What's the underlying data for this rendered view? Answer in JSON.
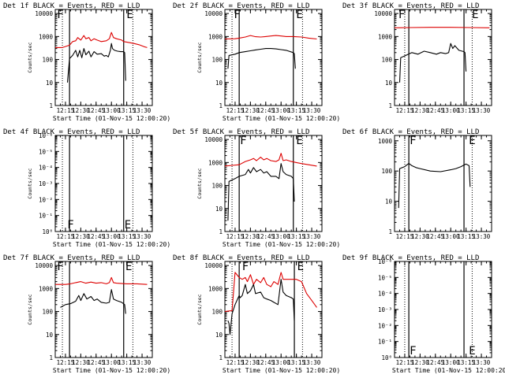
{
  "figure": {
    "series_names": [
      "BLACK = Events",
      "RED = LLD"
    ],
    "colors": {
      "events": "#000000",
      "lld": "#dd0000",
      "axis": "#000000"
    }
  },
  "chart_data": [
    {
      "type": "line",
      "title": "Det 1f BLACK = Events, RED = LLD",
      "xlabel": "Start Time (01-Nov-15 12:00:20)",
      "ylabel": "Counts/sec",
      "yscale": "log",
      "ylim": [
        1,
        15000
      ],
      "ytick_labels": [
        "1",
        "10",
        "100",
        "1000",
        "10000"
      ],
      "xlim": [
        "12:05",
        "13:40"
      ],
      "xtick_labels": [
        "12:15",
        "12:30",
        "12:45",
        "13:00",
        "13:15",
        "13:30"
      ],
      "dotted_lines": [
        "12:12",
        "13:21"
      ],
      "solid_lines": [
        "12:19",
        "13:12"
      ],
      "markers": [
        {
          "text": "F",
          "at": "12:06"
        },
        {
          "text": "E",
          "at": "13:14"
        }
      ],
      "series": [
        {
          "name": "RED = LLD",
          "color": "#dd0000",
          "x": [
            "12:05",
            "12:12",
            "12:19",
            "12:22",
            "12:25",
            "12:27",
            "12:30",
            "12:33",
            "12:35",
            "12:38",
            "12:40",
            "12:43",
            "12:46",
            "12:50",
            "12:55",
            "12:58",
            "13:00",
            "13:02",
            "13:05",
            "13:10",
            "13:12",
            "13:17",
            "13:22",
            "13:27",
            "13:32",
            "13:35"
          ],
          "y": [
            330,
            330,
            420,
            600,
            650,
            900,
            700,
            1100,
            800,
            900,
            650,
            800,
            700,
            600,
            650,
            800,
            1500,
            900,
            800,
            700,
            600,
            550,
            500,
            440,
            360,
            330
          ]
        },
        {
          "name": "BLACK = Events",
          "color": "#000000",
          "x": [
            "12:17",
            "12:19",
            "12:22",
            "12:25",
            "12:27",
            "12:29",
            "12:31",
            "12:33",
            "12:35",
            "12:38",
            "12:40",
            "12:43",
            "12:46",
            "12:50",
            "12:53",
            "12:55",
            "12:57",
            "12:59",
            "13:00",
            "13:01",
            "13:03",
            "13:06",
            "13:09",
            "13:12",
            "13:13",
            "13:14"
          ],
          "y": [
            10,
            110,
            150,
            250,
            130,
            250,
            120,
            300,
            160,
            230,
            130,
            220,
            170,
            180,
            140,
            150,
            130,
            250,
            500,
            300,
            250,
            230,
            220,
            220,
            200,
            12
          ]
        }
      ]
    },
    {
      "type": "line",
      "title": "Det 2f BLACK = Events, RED = LLD",
      "xlabel": "Start Time (01-Nov-15 12:00:20)",
      "ylabel": "Counts/sec",
      "yscale": "log",
      "ylim": [
        1,
        15000
      ],
      "ytick_labels": [
        "1",
        "10",
        "100",
        "1000",
        "10000"
      ],
      "xlim": [
        "12:05",
        "13:40"
      ],
      "xtick_labels": [
        "12:15",
        "12:30",
        "12:45",
        "13:00",
        "13:15",
        "13:30"
      ],
      "dotted_lines": [
        "12:12",
        "13:21"
      ],
      "solid_lines": [
        "12:19",
        "13:12"
      ],
      "markers": [
        {
          "text": "F",
          "at": "12:13"
        },
        {
          "text": "E",
          "at": "13:14"
        }
      ],
      "series": [
        {
          "name": "RED = LLD",
          "color": "#dd0000",
          "x": [
            "12:05",
            "12:15",
            "12:19",
            "12:25",
            "12:30",
            "12:35",
            "12:40",
            "12:45",
            "12:50",
            "12:55",
            "13:00",
            "13:05",
            "13:12",
            "13:20",
            "13:27",
            "13:35"
          ],
          "y": [
            780,
            800,
            850,
            950,
            1100,
            980,
            950,
            1000,
            1050,
            1100,
            1050,
            1000,
            1000,
            950,
            850,
            780
          ]
        },
        {
          "name": "BLACK = Events",
          "color": "#000000",
          "x": [
            "12:08",
            "12:09",
            "12:15",
            "12:19",
            "12:25",
            "12:30",
            "12:35",
            "12:40",
            "12:45",
            "12:50",
            "12:55",
            "13:00",
            "13:05",
            "13:12",
            "13:13",
            "13:14"
          ],
          "y": [
            40,
            150,
            170,
            200,
            220,
            240,
            260,
            280,
            300,
            300,
            290,
            270,
            250,
            200,
            180,
            40
          ]
        }
      ]
    },
    {
      "type": "line",
      "title": "Det 3f BLACK = Events, RED = LLD",
      "xlabel": "",
      "ylabel": "",
      "yscale": "log",
      "ylim": [
        1,
        15000
      ],
      "ytick_labels": [
        "1",
        "10",
        "100",
        "1000",
        "10000"
      ],
      "xlim": [
        "12:05",
        "13:40"
      ],
      "xtick_labels": [
        "12:15",
        "12:30",
        "12:45",
        "13:00",
        "13:15",
        "13:30"
      ],
      "dotted_lines": [
        "12:15",
        "13:21"
      ],
      "solid_lines": [
        "12:19",
        "13:13"
      ],
      "markers": [
        {
          "text": "F",
          "at": "12:08"
        },
        {
          "text": "E",
          "at": "13:20"
        }
      ],
      "series": [
        {
          "name": "RED = LLD",
          "color": "#dd0000",
          "x": [
            "12:05",
            "12:20",
            "12:40",
            "13:00",
            "13:20",
            "13:38"
          ],
          "y": [
            2400,
            2450,
            2500,
            2500,
            2450,
            2400
          ]
        },
        {
          "name": "BLACK = Events",
          "color": "#000000",
          "x": [
            "12:10",
            "12:11",
            "12:16",
            "12:22",
            "12:28",
            "12:34",
            "12:40",
            "12:46",
            "12:50",
            "12:55",
            "12:58",
            "13:00",
            "13:02",
            "13:04",
            "13:08",
            "13:13",
            "13:14",
            "13:15"
          ],
          "y": [
            10,
            120,
            150,
            200,
            170,
            230,
            200,
            170,
            200,
            180,
            200,
            500,
            300,
            400,
            250,
            220,
            200,
            30
          ]
        }
      ]
    },
    {
      "type": "line",
      "title": "Det 4f BLACK = Events, RED = LLD",
      "xlabel": "Start Time (01-Nov-15 12:00:20)",
      "ylabel": "Counts/sec",
      "yscale": "log",
      "ylim": [
        1,
        1000000
      ],
      "ytick_labels": [
        "10⁰",
        "10⁻¹",
        "10⁻²",
        "10⁻³",
        "10⁻⁴",
        "10⁻⁵",
        "10⁻⁶"
      ],
      "xlim": [
        "12:05",
        "13:40"
      ],
      "xtick_labels": [
        "12:15",
        "12:30",
        "12:45",
        "13:00",
        "13:15",
        "13:30"
      ],
      "dotted_lines": [
        "12:12",
        "13:21"
      ],
      "solid_lines": [
        "12:19",
        "13:12"
      ],
      "markers": [
        {
          "text": "F",
          "at": "12:16"
        },
        {
          "text": "E",
          "at": "13:12"
        }
      ],
      "series": []
    },
    {
      "type": "line",
      "title": "Det 5f BLACK = Events, RED = LLD",
      "xlabel": "Start Time (01-Nov-15 12:00:20)",
      "ylabel": "Counts/sec",
      "yscale": "log",
      "ylim": [
        1,
        15000
      ],
      "ytick_labels": [
        "1",
        "10",
        "100",
        "1000",
        "10000"
      ],
      "xlim": [
        "12:05",
        "13:40"
      ],
      "xtick_labels": [
        "12:15",
        "12:30",
        "12:45",
        "13:00",
        "13:15",
        "13:30"
      ],
      "dotted_lines": [
        "12:12",
        "13:21"
      ],
      "solid_lines": [
        "12:19",
        "13:12"
      ],
      "markers": [
        {
          "text": "F",
          "at": "12:19"
        },
        {
          "text": "E",
          "at": "13:14"
        }
      ],
      "series": [
        {
          "name": "RED = LLD",
          "color": "#dd0000",
          "x": [
            "12:05",
            "12:12",
            "12:19",
            "12:25",
            "12:30",
            "12:33",
            "12:36",
            "12:40",
            "12:43",
            "12:46",
            "12:50",
            "12:55",
            "12:58",
            "13:00",
            "13:02",
            "13:05",
            "13:10",
            "13:15",
            "13:20",
            "13:27",
            "13:35"
          ],
          "y": [
            700,
            750,
            800,
            1100,
            1300,
            1500,
            1200,
            1700,
            1300,
            1500,
            1200,
            1100,
            1300,
            2500,
            1200,
            1300,
            1100,
            1000,
            900,
            800,
            700
          ]
        },
        {
          "name": "BLACK = Events",
          "color": "#000000",
          "x": [
            "12:08",
            "12:09",
            "12:15",
            "12:19",
            "12:25",
            "12:28",
            "12:30",
            "12:33",
            "12:36",
            "12:40",
            "12:43",
            "12:46",
            "12:50",
            "12:55",
            "12:58",
            "13:00",
            "13:02",
            "13:05",
            "13:10",
            "13:12",
            "13:13"
          ],
          "y": [
            3,
            150,
            200,
            250,
            300,
            500,
            350,
            600,
            400,
            500,
            350,
            400,
            250,
            250,
            200,
            900,
            400,
            300,
            250,
            200,
            20
          ]
        }
      ]
    },
    {
      "type": "line",
      "title": "Det 6f BLACK = Events, RED = LLD",
      "xlabel": "",
      "ylabel": "",
      "yscale": "log",
      "ylim": [
        1,
        1500
      ],
      "ytick_labels": [
        "1",
        "10",
        "100",
        "1000"
      ],
      "xlim": [
        "12:05",
        "13:40"
      ],
      "xtick_labels": [
        "12:15",
        "12:30",
        "12:45",
        "13:00",
        "13:15",
        "13:30"
      ],
      "dotted_lines": [
        "12:15",
        "13:21"
      ],
      "solid_lines": [
        "12:19",
        "13:13"
      ],
      "markers": [
        {
          "text": "F",
          "at": "12:19"
        },
        {
          "text": "E",
          "at": "13:17"
        }
      ],
      "series": [
        {
          "name": "BLACK = Events",
          "color": "#000000",
          "x": [
            "12:09",
            "12:10",
            "12:15",
            "12:19",
            "12:22",
            "12:26",
            "12:30",
            "12:40",
            "12:50",
            "13:00",
            "13:05",
            "13:10",
            "13:15",
            "13:18",
            "13:19"
          ],
          "y": [
            6,
            120,
            140,
            180,
            150,
            130,
            120,
            100,
            95,
            110,
            120,
            140,
            170,
            150,
            30
          ]
        }
      ]
    },
    {
      "type": "line",
      "title": "Det 7f BLACK = Events, RED = LLD",
      "xlabel": "Start Time (01-Nov-15 12:00:20)",
      "ylabel": "Counts/sec",
      "yscale": "log",
      "ylim": [
        1,
        15000
      ],
      "ytick_labels": [
        "1",
        "10",
        "100",
        "1000",
        "10000"
      ],
      "xlim": [
        "12:05",
        "13:40"
      ],
      "xtick_labels": [
        "12:15",
        "12:30",
        "12:45",
        "13:00",
        "13:15",
        "13:30"
      ],
      "dotted_lines": [
        "12:12",
        "13:21"
      ],
      "solid_lines": [
        "12:19",
        "13:12"
      ],
      "markers": [
        {
          "text": "F",
          "at": "12:06"
        },
        {
          "text": "E",
          "at": "13:13"
        }
      ],
      "series": [
        {
          "name": "RED = LLD",
          "color": "#dd0000",
          "x": [
            "12:05",
            "12:15",
            "12:20",
            "12:25",
            "12:30",
            "12:35",
            "12:40",
            "12:45",
            "12:50",
            "12:55",
            "12:58",
            "13:00",
            "13:02",
            "13:05",
            "13:15",
            "13:25",
            "13:35"
          ],
          "y": [
            1500,
            1500,
            1600,
            1800,
            2000,
            1700,
            1900,
            1700,
            1800,
            1600,
            1800,
            3000,
            1800,
            1700,
            1600,
            1600,
            1500
          ]
        },
        {
          "name": "BLACK = Events",
          "color": "#000000",
          "x": [
            "12:10",
            "12:15",
            "12:20",
            "12:25",
            "12:28",
            "12:30",
            "12:33",
            "12:36",
            "12:40",
            "12:43",
            "12:46",
            "12:50",
            "12:55",
            "12:58",
            "13:00",
            "13:02",
            "13:05",
            "13:10",
            "13:13",
            "13:14"
          ],
          "y": [
            150,
            200,
            220,
            280,
            500,
            300,
            600,
            350,
            450,
            300,
            350,
            250,
            230,
            250,
            900,
            350,
            300,
            250,
            200,
            80
          ]
        }
      ]
    },
    {
      "type": "line",
      "title": "Det 8f BLACK = Events, RED = LLD",
      "xlabel": "Start Time (01-Nov-15 12:00:20)",
      "ylabel": "Counts/sec",
      "yscale": "log",
      "ylim": [
        1,
        15000
      ],
      "ytick_labels": [
        "1",
        "10",
        "100",
        "1000",
        "10000"
      ],
      "xlim": [
        "12:05",
        "13:40"
      ],
      "xtick_labels": [
        "12:15",
        "12:30",
        "12:45",
        "13:00",
        "13:15",
        "13:30"
      ],
      "dotted_lines": [
        "12:12",
        "13:21"
      ],
      "solid_lines": [
        "12:19",
        "13:13"
      ],
      "markers": [
        {
          "text": "F",
          "at": "12:21"
        },
        {
          "text": "E",
          "at": "13:15"
        }
      ],
      "series": [
        {
          "name": "RED = LLD",
          "color": "#dd0000",
          "x": [
            "12:05",
            "12:12",
            "12:15",
            "12:19",
            "12:22",
            "12:25",
            "12:27",
            "12:30",
            "12:33",
            "12:36",
            "12:40",
            "12:43",
            "12:46",
            "12:50",
            "12:53",
            "12:57",
            "13:00",
            "13:02",
            "13:05",
            "13:10",
            "13:15",
            "13:20",
            "13:25",
            "13:30",
            "13:35"
          ],
          "y": [
            100,
            110,
            5000,
            3000,
            2500,
            3000,
            2000,
            4000,
            1500,
            2500,
            1800,
            3000,
            1500,
            1200,
            2000,
            1500,
            5000,
            2500,
            2500,
            2500,
            2500,
            2000,
            600,
            300,
            150
          ]
        },
        {
          "name": "BLACK = Events",
          "color": "#000000",
          "x": [
            "12:08",
            "12:09",
            "12:10",
            "12:12",
            "12:15",
            "12:19",
            "12:20",
            "12:22",
            "12:25",
            "12:27",
            "12:30",
            "12:33",
            "12:35",
            "12:40",
            "12:43",
            "12:46",
            "12:50",
            "12:53",
            "12:57",
            "13:00",
            "13:02",
            "13:05",
            "13:10",
            "13:12",
            "13:13"
          ],
          "y": [
            40,
            30,
            10,
            80,
            200,
            500,
            400,
            500,
            1500,
            600,
            800,
            1500,
            600,
            700,
            400,
            350,
            300,
            250,
            200,
            2500,
            700,
            500,
            400,
            350,
            40
          ]
        }
      ]
    },
    {
      "type": "line",
      "title": "Det 9f BLACK = Events, RED = LLD",
      "xlabel": "Start Time (01-Nov-15 12:00:20)",
      "ylabel": "",
      "yscale": "log",
      "ylim": [
        1,
        1000000
      ],
      "ytick_labels": [
        "10⁰",
        "10⁻¹",
        "10⁻²",
        "10⁻³",
        "10⁻⁴",
        "10⁻⁵",
        "10⁻⁶"
      ],
      "xlim": [
        "12:05",
        "13:40"
      ],
      "xtick_labels": [
        "12:15",
        "12:30",
        "12:45",
        "13:00",
        "13:15",
        "13:30"
      ],
      "dotted_lines": [
        "12:15",
        "13:21"
      ],
      "solid_lines": [
        "12:19",
        "13:13"
      ],
      "markers": [
        {
          "text": "F",
          "at": "12:19"
        },
        {
          "text": "E",
          "at": "13:17"
        }
      ],
      "series": []
    }
  ]
}
